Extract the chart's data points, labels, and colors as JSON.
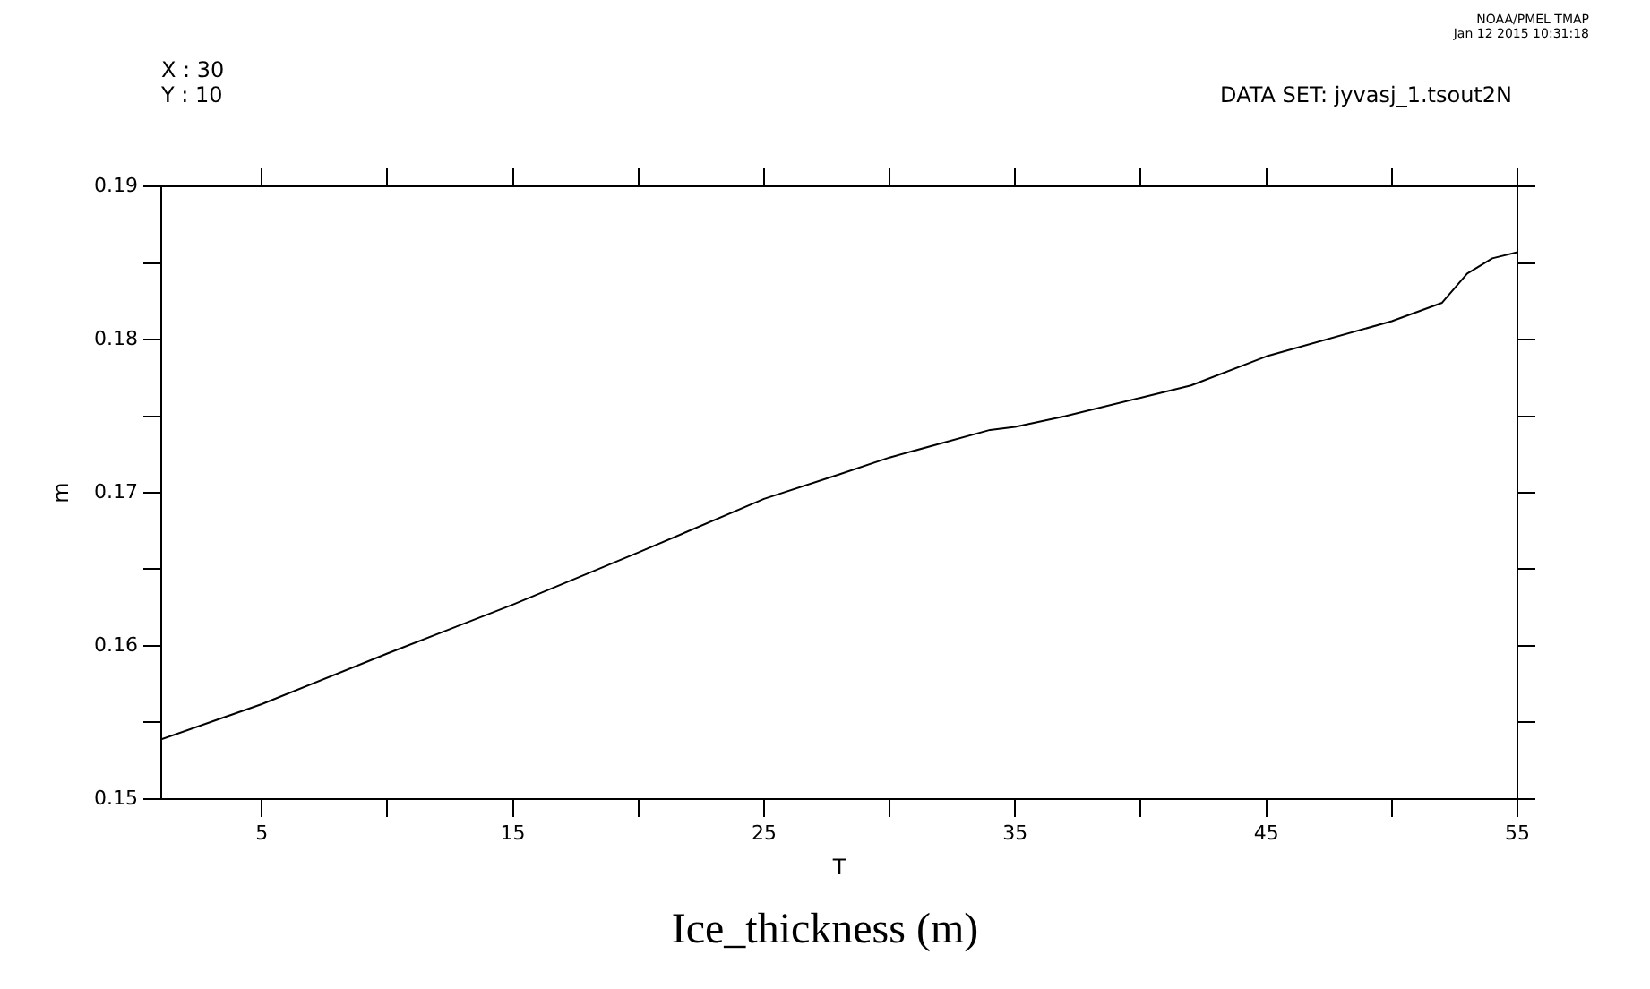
{
  "chart_data": {
    "type": "line",
    "title": "Ice_thickness (m)",
    "xlabel": "T",
    "ylabel": "m",
    "annotations": [
      "X : 30",
      "Y : 10",
      "DATA SET: jyvasj_1.tsout2N",
      "NOAA/PMEL TMAP",
      "Jan 12 2015 10:31:18"
    ],
    "x": [
      1,
      5,
      10,
      15,
      20,
      25,
      28,
      30,
      34,
      35,
      37,
      40,
      42,
      45,
      50,
      52,
      53,
      54,
      55
    ],
    "series": [
      {
        "color": "#000000",
        "values": [
          0.1539,
          0.1562,
          0.1595,
          0.1627,
          0.1661,
          0.1696,
          0.1712,
          0.1723,
          0.1741,
          0.1743,
          0.175,
          0.1762,
          0.177,
          0.1789,
          0.1812,
          0.1824,
          0.1843,
          0.1853,
          0.1857
        ]
      }
    ],
    "xlim": [
      1,
      55
    ],
    "xticks": [
      5,
      {
        "value": 10,
        "label": null
      },
      15,
      {
        "value": 20,
        "label": null
      },
      25,
      {
        "value": 30,
        "label": null
      },
      35,
      {
        "value": 40,
        "label": null
      },
      45,
      {
        "value": 50,
        "label": null
      },
      55
    ],
    "ylim": [
      0.15,
      0.19
    ],
    "yticks": [
      0.15,
      {
        "value": 0.155,
        "label": null
      },
      0.16,
      {
        "value": 0.165,
        "label": null
      },
      0.17,
      {
        "value": 0.175,
        "label": null
      },
      0.18,
      {
        "value": 0.185,
        "label": null
      },
      0.19
    ],
    "grid": false,
    "legend": false,
    "marker": "none",
    "line_style": "solid"
  }
}
